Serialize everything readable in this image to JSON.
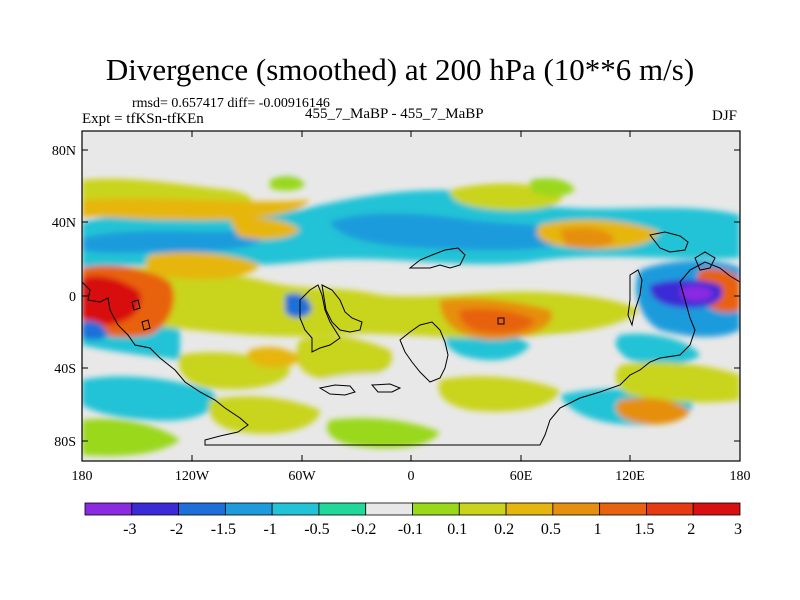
{
  "title": "Divergence (smoothed) at 200 hPa (10**6 m/s)",
  "stats_line": "rmsd= 0.657417 diff= -0.00916146",
  "expt_label": "Expt = tfKSn-tfKEn",
  "center_label": "455_7_MaBP - 455_7_MaBP",
  "season": "DJF",
  "lat_ticks": [
    "80N",
    "40N",
    "0",
    "40S",
    "80S"
  ],
  "lon_ticks": [
    "180",
    "120W",
    "60W",
    "0",
    "60E",
    "120E",
    "180"
  ],
  "colorbar": {
    "colors": [
      "#8a2be2",
      "#3a2bd6",
      "#1e6fd9",
      "#1e9bdc",
      "#22c3d6",
      "#20d89a",
      "#e8e8e8",
      "#9ad81a",
      "#c9d41a",
      "#e6b60e",
      "#e68f0e",
      "#e8620f",
      "#e53a12",
      "#d8100f"
    ],
    "labels": [
      "-3",
      "-2",
      "-1.5",
      "-1",
      "-0.5",
      "-0.2",
      "-0.1",
      "0.1",
      "0.2",
      "0.5",
      "1",
      "1.5",
      "2",
      "3"
    ]
  }
}
